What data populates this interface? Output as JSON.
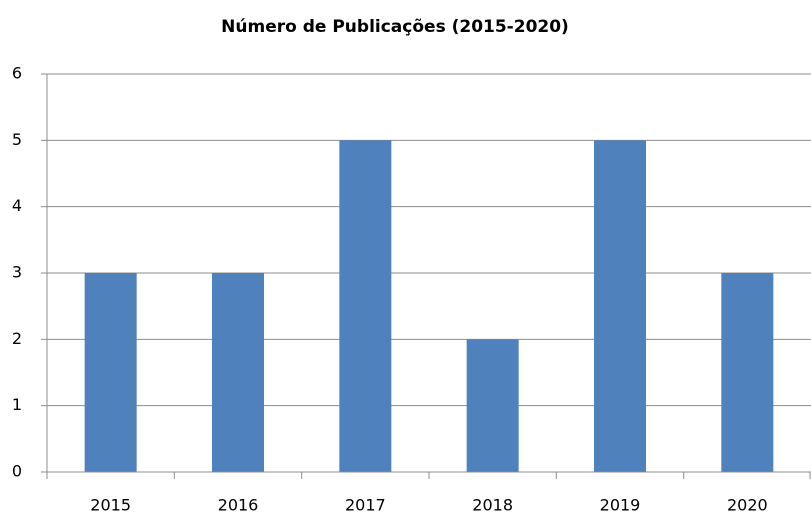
{
  "chart_data": {
    "type": "bar",
    "title": "Número de Publicações (2015-2020)",
    "categories": [
      "2015",
      "2016",
      "2017",
      "2018",
      "2019",
      "2020"
    ],
    "values": [
      3,
      3,
      5,
      2,
      5,
      3
    ],
    "color": "#4f81bd",
    "ylim": [
      0,
      6
    ],
    "yticks": [
      0,
      1,
      2,
      3,
      4,
      5,
      6
    ],
    "grid": true
  }
}
